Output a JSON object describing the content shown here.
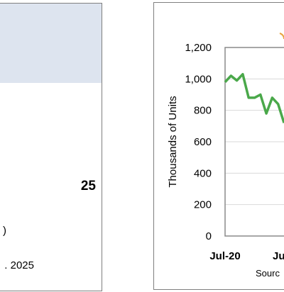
{
  "left_panel": {
    "year_fragment": "25",
    "paren_fragment": ")",
    "date_fragment": ". 2025"
  },
  "chart_data": {
    "type": "line",
    "ylabel": "Thousands of Units",
    "ylim": [
      0,
      1200
    ],
    "yticks": [
      "0",
      "200",
      "400",
      "600",
      "800",
      "1,000",
      "1,200"
    ],
    "xticks": [
      "Jul-20",
      "Ju"
    ],
    "source_fragment": "Sourc",
    "grid": true,
    "series": [
      {
        "color": "#4aa84a",
        "points": [
          {
            "x": "Jul-20",
            "y": 980
          },
          {
            "x": "Aug-20",
            "y": 1020
          },
          {
            "x": "Sep-20",
            "y": 990
          },
          {
            "x": "Oct-20",
            "y": 1030
          },
          {
            "x": "Nov-20",
            "y": 880
          },
          {
            "x": "Dec-20",
            "y": 880
          },
          {
            "x": "Jan-21",
            "y": 900
          },
          {
            "x": "Feb-21",
            "y": 780
          },
          {
            "x": "Mar-21",
            "y": 880
          },
          {
            "x": "Apr-21",
            "y": 840
          },
          {
            "x": "May-21",
            "y": 720
          }
        ]
      }
    ]
  }
}
